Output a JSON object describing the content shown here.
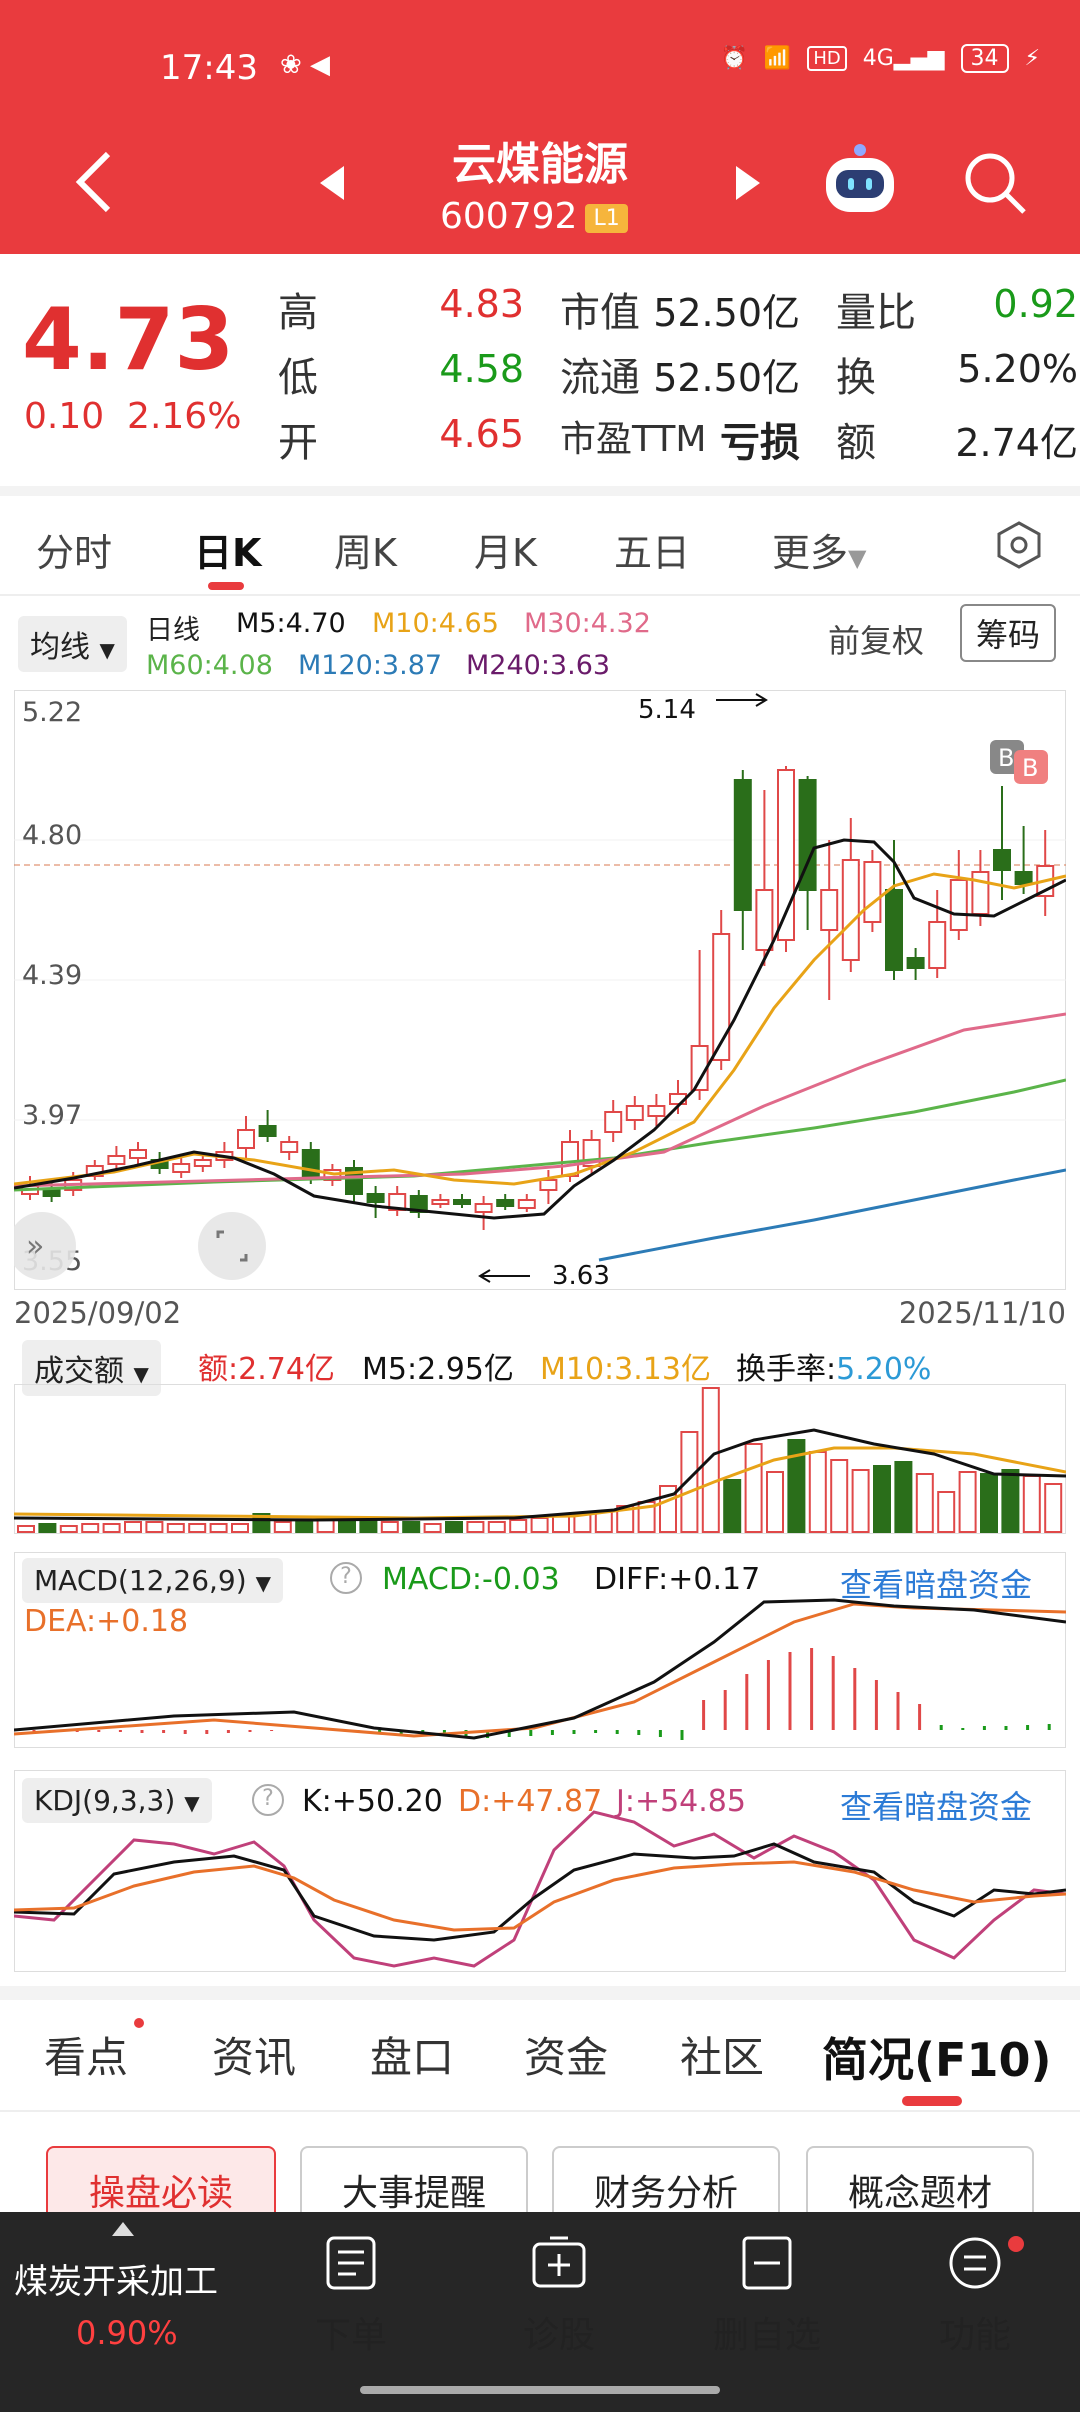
{
  "status_bar": {
    "time": "17:43",
    "battery": "34"
  },
  "header": {
    "title": "云煤能源",
    "code": "600792",
    "badge": "L1"
  },
  "quote": {
    "price": "4.73",
    "change": "0.10",
    "change_pct": "2.16%",
    "rows": [
      {
        "l1": "高",
        "v1": "4.83",
        "l2": "市值",
        "v2": "52.50亿",
        "l3": "量比",
        "v3": "0.92"
      },
      {
        "l1": "低",
        "v1": "4.58",
        "l2": "流通",
        "v2": "52.50亿",
        "l3": "换",
        "v3": "5.20%"
      },
      {
        "l1": "开",
        "v1": "4.65",
        "l2": "市盈TTM",
        "v2": "亏损",
        "l3": "额",
        "v3": "2.74亿"
      }
    ]
  },
  "period_tabs": [
    "分时",
    "日K",
    "周K",
    "月K",
    "五日",
    "更多"
  ],
  "ma_bar": {
    "selector": "均线",
    "type": "日线",
    "m5": "M5:4.70",
    "m10": "M10:4.65",
    "m30": "M30:4.32",
    "m60": "M60:4.08",
    "m120": "M120:3.87",
    "m240": "M240:3.63",
    "adjust": "前复权",
    "chip_btn": "筹码"
  },
  "kline": {
    "y_ticks": [
      "5.22",
      "4.80",
      "4.39",
      "3.97",
      "3.55"
    ],
    "high_label": "5.14",
    "low_label": "3.63",
    "date_start": "2025/09/02",
    "date_end": "2025/11/10",
    "marker_b1": "B",
    "marker_b2": "B"
  },
  "volume": {
    "selector": "成交额",
    "amount": "额:2.74亿",
    "m5": "M5:2.95亿",
    "m10": "M10:3.13亿",
    "turnover_label": "换手率:",
    "turnover": "5.20%"
  },
  "macd": {
    "selector": "MACD(12,26,9)",
    "macd": "MACD:-0.03",
    "diff": "DIFF:+0.17",
    "dea": "DEA:+0.18",
    "link": "查看暗盘资金"
  },
  "kdj": {
    "selector": "KDJ(9,3,3)",
    "k": "K:+50.20",
    "d": "D:+47.87",
    "j": "J:+54.85",
    "link": "查看暗盘资金"
  },
  "section_tabs": [
    "看点",
    "资讯",
    "盘口",
    "资金",
    "社区",
    "简况(F10)"
  ],
  "sub_chips": [
    "操盘必读",
    "大事提醒",
    "财务分析",
    "概念题材"
  ],
  "bottom": {
    "sector_name": "煤炭开采加工",
    "sector_change": "0.90%",
    "items": [
      "下单",
      "诊股",
      "删自选",
      "功能"
    ]
  },
  "colors": {
    "brand": "#e93b3e",
    "up": "#e03030",
    "down": "#2a6e1a"
  }
}
